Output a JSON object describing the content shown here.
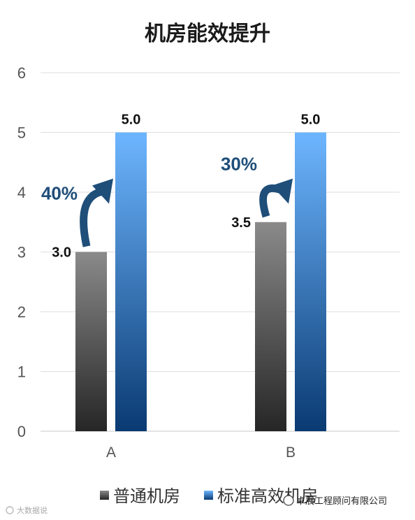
{
  "chart_data": {
    "type": "bar",
    "title": "机房能效提升",
    "categories": [
      "A",
      "B"
    ],
    "series": [
      {
        "name": "普通机房",
        "values": [
          3.0,
          3.5
        ],
        "labels": [
          "3.0",
          "3.5"
        ],
        "color_top": "#8a8a8a",
        "color_bottom": "#262626"
      },
      {
        "name": "标准高效机房",
        "values": [
          5.0,
          5.0
        ],
        "labels": [
          "5.0",
          "5.0"
        ],
        "color_top": "#6db6ff",
        "color_bottom": "#0a3a72"
      }
    ],
    "improvements": [
      "40%",
      "30%"
    ],
    "yticks": [
      "0",
      "1",
      "2",
      "3",
      "4",
      "5",
      "6"
    ],
    "ylim": [
      0,
      6
    ],
    "grid": true,
    "legend": "bottom",
    "arrow_color": "#1f4e79"
  },
  "watermarks": {
    "left": "大数据说",
    "right": "卓展工程顾问有限公司"
  }
}
